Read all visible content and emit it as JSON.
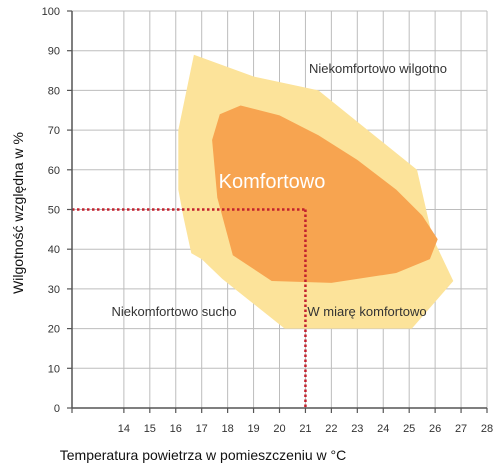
{
  "chart_data": {
    "type": "area",
    "title": "",
    "xlabel": "Temperatura powietrza w pomieszczeniu w °C",
    "ylabel": "Wilgotność względna w %",
    "xlim": [
      12,
      28
    ],
    "ylim": [
      0,
      100
    ],
    "x_ticks": [
      14,
      15,
      16,
      17,
      18,
      19,
      20,
      21,
      22,
      23,
      24,
      25,
      26,
      27,
      28
    ],
    "y_ticks": [
      0,
      10,
      20,
      30,
      40,
      50,
      60,
      70,
      80,
      90,
      100
    ],
    "grid": true,
    "zones": [
      {
        "label": "Niekomfortowo wilgotno",
        "note_label": "W miarę komfortowo",
        "color": "#fce39a",
        "polygon": [
          [
            16.1,
            70
          ],
          [
            16.7,
            89
          ],
          [
            19.0,
            83.5
          ],
          [
            21.5,
            80
          ],
          [
            25.3,
            60
          ],
          [
            25.9,
            43
          ],
          [
            26.7,
            32
          ],
          [
            25.1,
            20
          ],
          [
            20.2,
            20
          ],
          [
            17.8,
            32.5
          ],
          [
            17.0,
            37.5
          ],
          [
            16.6,
            39
          ],
          [
            16.3,
            48
          ],
          [
            16.1,
            55
          ]
        ]
      },
      {
        "label": "Komfortowo",
        "color": "#f7a450",
        "polygon": [
          [
            17.7,
            74
          ],
          [
            18.5,
            76.2
          ],
          [
            20.0,
            73.7
          ],
          [
            21.5,
            68.7
          ],
          [
            23.0,
            62.5
          ],
          [
            24.5,
            55
          ],
          [
            25.5,
            48.5
          ],
          [
            26.1,
            42.5
          ],
          [
            25.8,
            37.5
          ],
          [
            24.5,
            34
          ],
          [
            22.0,
            31.5
          ],
          [
            19.7,
            32
          ],
          [
            18.2,
            38.5
          ],
          [
            17.6,
            53
          ],
          [
            17.4,
            67.5
          ]
        ]
      }
    ],
    "outside_label": "Niekomfortowo sucho",
    "reference_point": {
      "x": 21,
      "y": 50
    },
    "reference_color": "#c2202d",
    "colors": {
      "axis": "#555555",
      "grid": "#bdbdbd"
    }
  }
}
